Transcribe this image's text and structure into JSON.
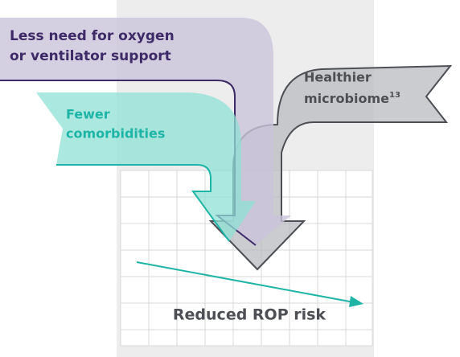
{
  "arrows": [
    {
      "lines": [
        "Less need for oxygen",
        "or ventilator support"
      ]
    },
    {
      "lines": [
        "Healthier",
        "microbiome"
      ],
      "superscript": "13"
    },
    {
      "lines": [
        "Fewer",
        "comorbidities"
      ]
    }
  ],
  "result": "Reduced ROP risk"
}
